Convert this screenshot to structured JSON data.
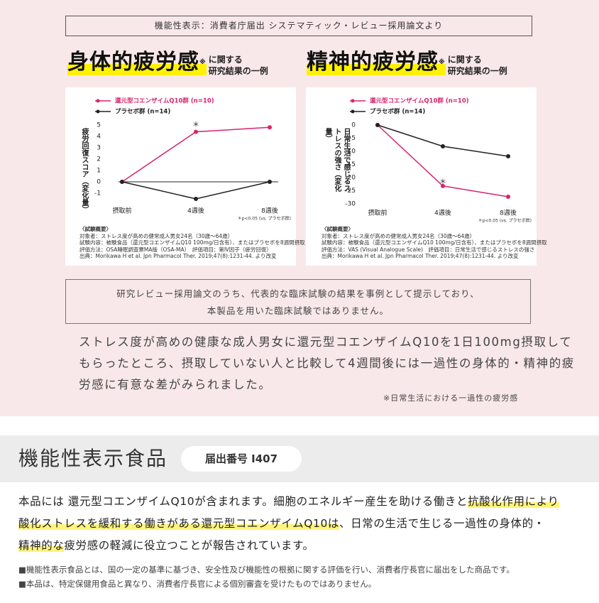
{
  "header": {
    "source_note": "機能性表示：消費者庁届出 システマティック・レビュー採用論文より"
  },
  "chart_data": [
    {
      "type": "line",
      "title": "身体的疲労感",
      "title_mark": "※",
      "subtitle_lines": [
        "に関する",
        "研究結果の一例"
      ],
      "ylabel": "疲労回復スコア（変化量）",
      "categories": [
        "摂取前",
        "4週後",
        "8週後"
      ],
      "series": [
        {
          "name": "還元型コエンザイムQ10群 (n=10)",
          "color": "#d6246e",
          "values": [
            0,
            4.4,
            4.8
          ]
        },
        {
          "name": "プラセボ群 (n=14)",
          "color": "#222222",
          "values": [
            0,
            -1.5,
            0
          ]
        }
      ],
      "ylim": [
        -1.5,
        5
      ],
      "yticks": [
        5,
        4,
        3,
        2,
        1,
        0,
        -1
      ],
      "zero_line": true,
      "significance": "＊",
      "p_note": "＊p<0.05 (vs. プラセボ群)",
      "summary": [
        "〈試験概要〉",
        "対象者：ストレス度が高めの健常成人男女24名（30歳〜64歳）",
        "試験内容：被験食品（還元型コエンザイムQ10 100mg/日含有）、またはプラセボを8週間摂取",
        "評価方法：OSA睡眠調査票MA版（OSA-MA）　評価項目：第Ⅳ因子（疲労回復）",
        "出典：Morikawa H et al. Jpn Pharmacol Ther. 2019;47(8):1231-44. より改変"
      ]
    },
    {
      "type": "line",
      "title": "精神的疲労感",
      "title_mark": "※",
      "subtitle_lines": [
        "に関する",
        "研究結果の一例"
      ],
      "ylabel": "日常生活で感じるストレスの強さ（変化量）",
      "categories": [
        "摂取前",
        "4週後",
        "8週後"
      ],
      "series": [
        {
          "name": "還元型コエンザイムQ10群 (n=10)",
          "color": "#d6246e",
          "values": [
            0,
            -23.2,
            -27.3
          ]
        },
        {
          "name": "プラセボ群 (n=14)",
          "color": "#222222",
          "values": [
            0,
            -8.1,
            -11.9
          ]
        }
      ],
      "ylim": [
        -30,
        0
      ],
      "yticks": [
        0,
        -5,
        -10,
        -15,
        -20,
        -25,
        -30
      ],
      "zero_line": false,
      "significance": "＊",
      "p_note": "＊p<0.05 (vs. プラセボ群)",
      "summary": [
        "〈試験概要〉",
        "対象者：ストレス度が高めの健常成人男女24名（30歳〜64歳）",
        "試験内容：被験食品（還元型コエンザイムQ10 100mg/日含有）、またはプラセボを8週間摂取",
        "評価方法：VAS (Visual Analogue Scale)　評価項目：日常生活で感じるストレスの強さ",
        "出典：Morikawa H et al. Jpn Pharmacol Ther. 2019;47(8):1231-44. より改変"
      ]
    }
  ],
  "disclaimer": {
    "lines": [
      "研究レビュー採用論文のうち、代表的な臨床試験の結果を事例として提示しており、",
      "本製品を用いた臨床試験ではありません。"
    ]
  },
  "body": {
    "lines": [
      "ストレス度が高めの健康な成人男女に還元型コエンザイムQ10を1日100mg摂取して",
      "もらったところ、摂取していない人と比較して4週間後には一過性の身体的・精神的疲",
      "労感に有意な差がみられました。"
    ],
    "note": "※日常生活における一過性の疲労感"
  },
  "product": {
    "title": "機能性表示食品",
    "registration": "届出番号 I407",
    "lines": [
      [
        {
          "text": "本品には 還元型コエンザイムQ10が含まれます。細胞のエネルギー産生を助ける働きと",
          "highlight": false
        },
        {
          "text": "抗酸化作用により",
          "highlight": true
        }
      ],
      [
        {
          "text": "酸化ストレスを緩和する働きがある還元型コエンザイムQ10は",
          "highlight": true
        },
        {
          "text": "、日常の生活で生じる一過性の身体的・",
          "highlight": false
        }
      ],
      [
        {
          "text": "精神的な",
          "highlight": true
        },
        {
          "text": "疲労感の軽減に役立つことが報告されています。",
          "highlight": false
        }
      ]
    ],
    "footnotes": [
      "■機能性表示食品とは、国の一定の基準に基づき、安全性及び機能性の根拠に関する評価を行い、消費者庁長官に届出をした商品です。",
      "■本品は、特定保健用食品と異なり、消費者庁長官による個別審査を受けたものではありません。"
    ]
  }
}
